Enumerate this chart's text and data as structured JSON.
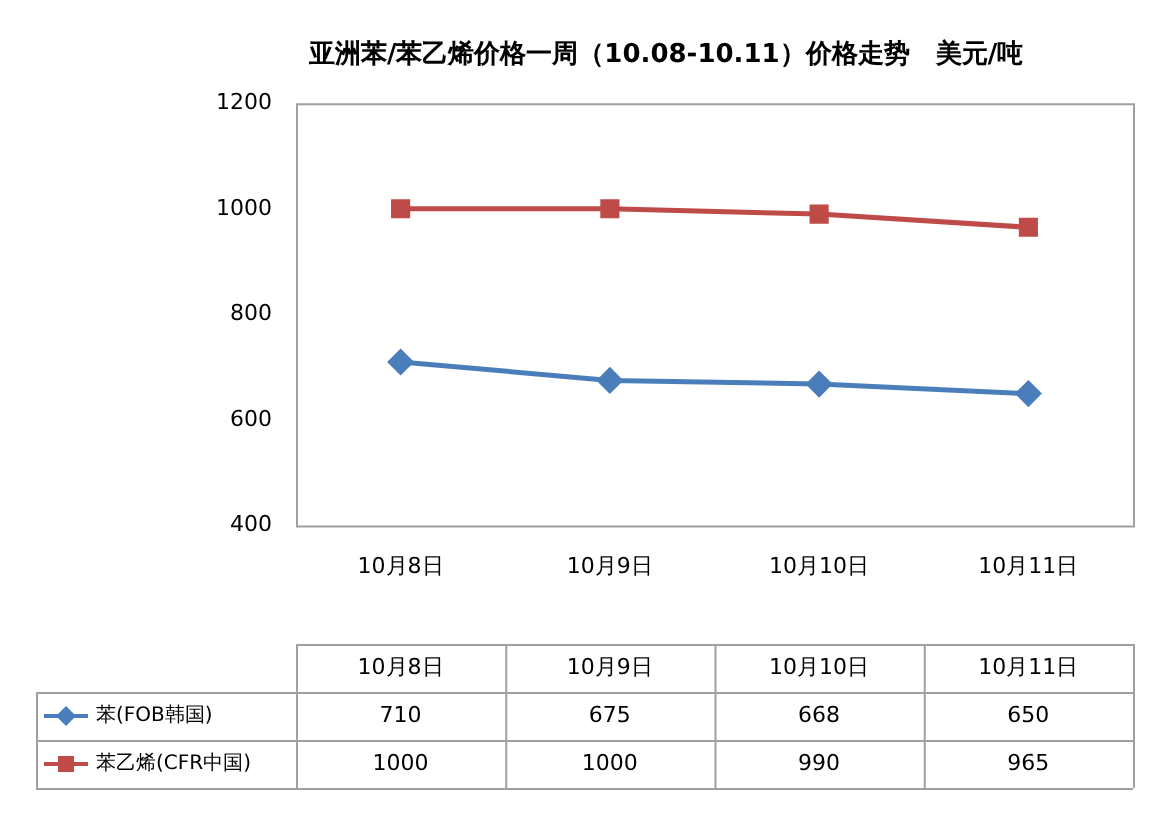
{
  "chart_data": {
    "type": "line",
    "title": "亚洲苯/苯乙烯价格一周（10.08-10.11）价格走势　美元/吨",
    "categories": [
      "10月8日",
      "10月9日",
      "10月10日",
      "10月11日"
    ],
    "series": [
      {
        "name": "苯(FOB韩国)",
        "color": "#4a7ebb",
        "marker": "diamond",
        "values": [
          710,
          675,
          668,
          650
        ]
      },
      {
        "name": "苯乙烯(CFR中国)",
        "color": "#be4b48",
        "marker": "square",
        "values": [
          1000,
          1000,
          990,
          965
        ]
      }
    ],
    "ylim": [
      400,
      1200
    ],
    "yticks": [
      400,
      600,
      800,
      1000,
      1200
    ],
    "data_labels": true,
    "legend": "bottom",
    "line_style": "solid"
  }
}
